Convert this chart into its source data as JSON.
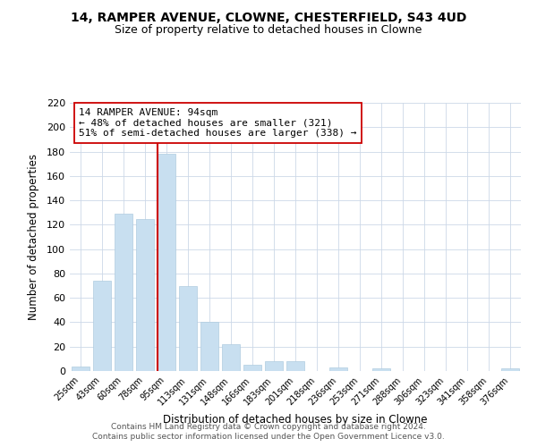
{
  "title": "14, RAMPER AVENUE, CLOWNE, CHESTERFIELD, S43 4UD",
  "subtitle": "Size of property relative to detached houses in Clowne",
  "xlabel": "Distribution of detached houses by size in Clowne",
  "ylabel": "Number of detached properties",
  "bar_color": "#c8dff0",
  "bar_edge_color": "#b0cce0",
  "categories": [
    "25sqm",
    "43sqm",
    "60sqm",
    "78sqm",
    "95sqm",
    "113sqm",
    "131sqm",
    "148sqm",
    "166sqm",
    "183sqm",
    "201sqm",
    "218sqm",
    "236sqm",
    "253sqm",
    "271sqm",
    "288sqm",
    "306sqm",
    "323sqm",
    "341sqm",
    "358sqm",
    "376sqm"
  ],
  "values": [
    4,
    74,
    129,
    125,
    178,
    70,
    40,
    22,
    5,
    8,
    8,
    0,
    3,
    0,
    2,
    0,
    0,
    0,
    0,
    0,
    2
  ],
  "ylim": [
    0,
    220
  ],
  "yticks": [
    0,
    20,
    40,
    60,
    80,
    100,
    120,
    140,
    160,
    180,
    200,
    220
  ],
  "annotation_title": "14 RAMPER AVENUE: 94sqm",
  "annotation_line1": "← 48% of detached houses are smaller (321)",
  "annotation_line2": "51% of semi-detached houses are larger (338) →",
  "vline_color": "#cc0000",
  "annotation_box_color": "#ffffff",
  "annotation_box_edge": "#cc0000",
  "background_color": "#ffffff",
  "grid_color": "#ccd8e8",
  "footer1": "Contains HM Land Registry data © Crown copyright and database right 2024.",
  "footer2": "Contains public sector information licensed under the Open Government Licence v3.0."
}
